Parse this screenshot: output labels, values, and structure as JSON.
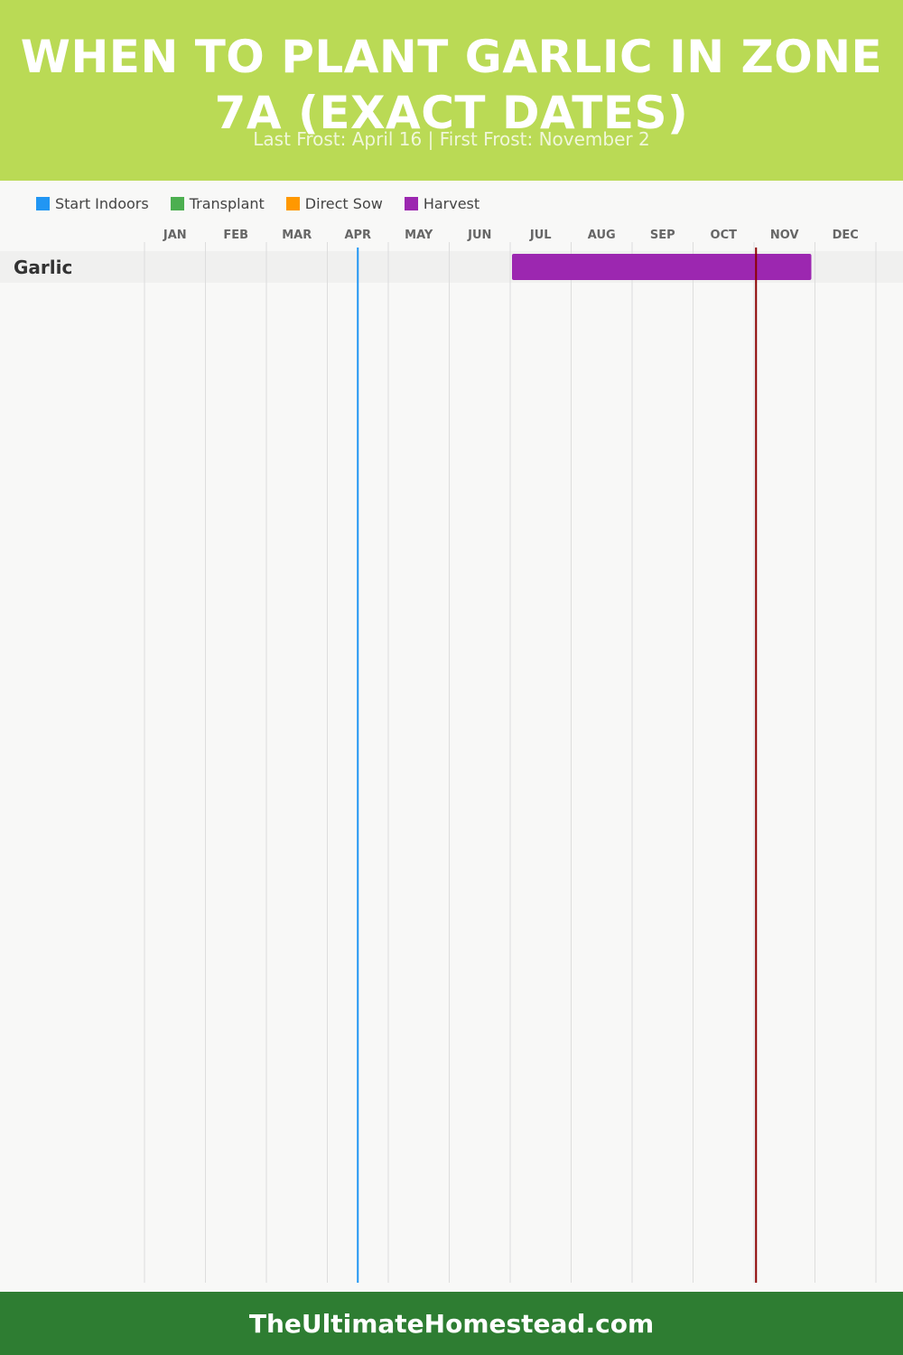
{
  "header": {
    "title": "WHEN TO PLANT GARLIC IN ZONE 7A (EXACT DATES)",
    "subtitle": "Last Frost: April 16 | First Frost: November 2",
    "background": "#bada55"
  },
  "legend": [
    {
      "label": "Start Indoors",
      "color": "#2196f3"
    },
    {
      "label": "Transplant",
      "color": "#4caf50"
    },
    {
      "label": "Direct Sow",
      "color": "#ff9800"
    },
    {
      "label": "Harvest",
      "color": "#9c27b0"
    }
  ],
  "chart_data": {
    "type": "gantt",
    "months": [
      "JAN",
      "FEB",
      "MAR",
      "APR",
      "MAY",
      "JUN",
      "JUL",
      "AUG",
      "SEP",
      "OCT",
      "NOV",
      "DEC"
    ],
    "rows": [
      {
        "label": "Garlic",
        "bars": [
          {
            "phase": "Harvest",
            "start": "Jul 1",
            "end": "Nov 30",
            "color": "#9c27b0"
          }
        ]
      }
    ],
    "markers": [
      {
        "label": "Last Frost",
        "date": "Apr 16",
        "color": "#2196f3"
      },
      {
        "label": "First Frost",
        "date": "Nov 2",
        "color": "#8b0000"
      }
    ],
    "grid": true
  },
  "footer": {
    "text": "TheUltimateHomestead.com",
    "background": "#2e7d32"
  }
}
